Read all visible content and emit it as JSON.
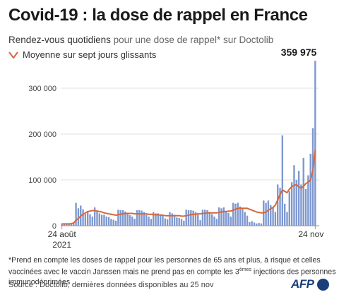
{
  "header": {
    "title": "Covid-19 : la dose de rappel en France",
    "subtitle_lead": "Rendez-vous quotidiens",
    "subtitle_rest": " pour une dose de rappel* sur Doctolib",
    "legend_label": "Moyenne sur sept jours glissants"
  },
  "footer": {
    "note_part1": "*Prend en compte les doses de rappel pour les personnes de 65 ans et plus, à risque et celles vaccinées avec le vaccin Janssen mais ne prend pas en compte les 3",
    "note_sup": "èmes",
    "note_part2": " injections des personnes immunodéprimées",
    "source": "Source : Doctolib, dernières données disponibles au 25 nov",
    "logo_text": "AFP"
  },
  "colors": {
    "bar": "#7e98cf",
    "average_line": "#d9663a",
    "grid": "#d9d9d9",
    "axis": "#9a9a9a",
    "logo": "#1a3e7a"
  },
  "chart_data": {
    "type": "bar",
    "x_start_label": "24 août",
    "x_start_year": "2021",
    "x_end_label": "24 nov",
    "peak_label": "359 975",
    "ylim": [
      0,
      360000
    ],
    "y_ticks": [
      0,
      100000,
      200000,
      300000
    ],
    "y_tick_labels": [
      "0",
      "100 000",
      "200 000",
      "300 000"
    ],
    "grid": true,
    "series": [
      {
        "kind": "bar",
        "values": [
          5000,
          5000,
          5000,
          5000,
          5000,
          6000,
          50000,
          38000,
          44000,
          36000,
          26000,
          30000,
          25000,
          20000,
          40000,
          32000,
          27000,
          24000,
          24000,
          20000,
          19000,
          15000,
          13000,
          11000,
          35000,
          34000,
          34000,
          31000,
          26000,
          23000,
          20000,
          15000,
          34000,
          34000,
          33000,
          30000,
          24000,
          20000,
          15000,
          30000,
          27000,
          27000,
          25000,
          24000,
          16000,
          14000,
          30000,
          27000,
          24000,
          18000,
          17000,
          15000,
          11000,
          35000,
          34000,
          34000,
          33000,
          30000,
          24000,
          12000,
          35000,
          35000,
          34000,
          30000,
          25000,
          20000,
          15000,
          40000,
          38000,
          40000,
          32000,
          28000,
          20000,
          50000,
          48000,
          50000,
          42000,
          38000,
          30000,
          22000,
          8000,
          10000,
          7000,
          5000,
          6000,
          5000,
          55000,
          50000,
          55000,
          45000,
          40000,
          30000,
          90000,
          83000,
          197000,
          48000,
          30000,
          75000,
          95000,
          132000,
          100000,
          120000,
          90000,
          148000,
          80000,
          110000,
          157000,
          213000,
          359975
        ]
      },
      {
        "kind": "line",
        "values": [
          4000,
          4000,
          4000,
          4000,
          4500,
          6000,
          12000,
          16000,
          21000,
          25000,
          28000,
          31000,
          32000,
          33000,
          33000,
          32000,
          31000,
          30000,
          28000,
          27000,
          26000,
          25000,
          24000,
          23000,
          24000,
          25000,
          26000,
          27000,
          27000,
          27000,
          27000,
          26000,
          26000,
          26000,
          26000,
          26000,
          26000,
          25000,
          25000,
          24000,
          24000,
          24000,
          23000,
          23000,
          22000,
          22000,
          22000,
          22000,
          22000,
          22000,
          22000,
          21000,
          21000,
          22000,
          23000,
          24000,
          25000,
          25000,
          26000,
          26000,
          27000,
          27000,
          28000,
          28000,
          28000,
          28000,
          28000,
          29000,
          30000,
          31000,
          31000,
          32000,
          32000,
          34000,
          36000,
          38000,
          38000,
          38000,
          38000,
          38000,
          36000,
          34000,
          32000,
          30000,
          29000,
          28000,
          28000,
          30000,
          34000,
          37000,
          40000,
          45000,
          56000,
          68000,
          78000,
          75000,
          72000,
          80000,
          85000,
          88000,
          90000,
          85000,
          82000,
          86000,
          92000,
          95000,
          100000,
          120000,
          165000
        ]
      }
    ]
  }
}
